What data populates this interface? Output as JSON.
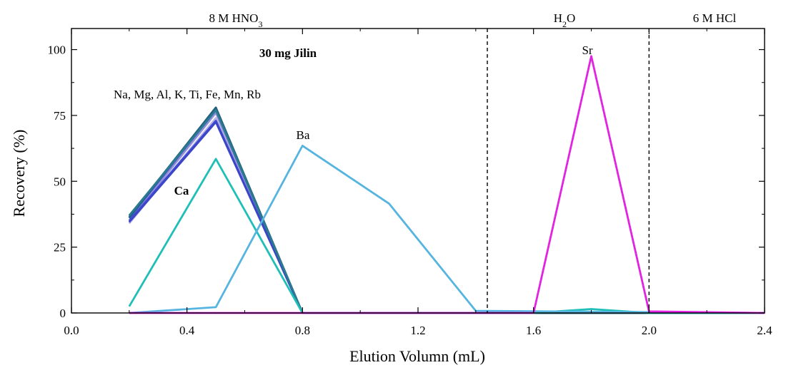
{
  "chart_data": {
    "type": "line",
    "xlabel": "Elution Volumn (mL)",
    "ylabel": "Recovery (%)",
    "xlim": [
      0.0,
      2.4
    ],
    "ylim": [
      0,
      108
    ],
    "xticks": [
      0.0,
      0.4,
      0.8,
      1.2,
      1.6,
      2.0,
      2.4
    ],
    "xtick_labels": [
      "0.0",
      "0.4",
      "0.8",
      "1.2",
      "1.6",
      "2.0",
      "2.4"
    ],
    "yticks": [
      0,
      25,
      50,
      75,
      100
    ],
    "ytick_labels": [
      "0",
      "25",
      "50",
      "75",
      "100"
    ],
    "regions": [
      {
        "label_main": "8 M HNO",
        "label_sub": "3",
        "x_range": [
          0.0,
          1.44
        ]
      },
      {
        "label_main": "H",
        "label_sub": "2",
        "label_tail": "O",
        "x_range": [
          1.44,
          2.0
        ]
      },
      {
        "label_main": "6 M HCl",
        "label_sub": "",
        "x_range": [
          2.0,
          2.4
        ]
      }
    ],
    "dividers": [
      1.44,
      2.0
    ],
    "annotations": {
      "sample": "30 mg Jilin",
      "matrix_group": "Na, Mg, Al, K, Ti, Fe, Mn, Rb",
      "ca": "Ca",
      "ba": "Ba",
      "sr": "Sr"
    },
    "series": [
      {
        "color": "#b8b4e4",
        "x": [
          0.2,
          0.5,
          0.8,
          2.4
        ],
        "y": [
          34,
          74,
          0,
          0
        ]
      },
      {
        "color": "#9590da",
        "x": [
          0.2,
          0.5,
          0.8,
          2.4
        ],
        "y": [
          35,
          76,
          0,
          0
        ]
      },
      {
        "color": "#6a6cd8",
        "x": [
          0.2,
          0.5,
          0.8,
          2.4
        ],
        "y": [
          36,
          77,
          0,
          0
        ]
      },
      {
        "color": "#4a4ed6",
        "x": [
          0.2,
          0.5,
          0.8,
          2.4
        ],
        "y": [
          35,
          73,
          0,
          0
        ]
      },
      {
        "color": "#3a45c8",
        "x": [
          0.2,
          0.5,
          0.8,
          2.4
        ],
        "y": [
          34.5,
          72.5,
          0,
          0
        ]
      },
      {
        "color": "#2f5fa8",
        "x": [
          0.2,
          0.5,
          0.8,
          2.4
        ],
        "y": [
          36,
          77.5,
          0,
          0
        ]
      },
      {
        "color": "#22607e",
        "x": [
          0.2,
          0.5,
          0.8,
          2.4
        ],
        "y": [
          36.5,
          78,
          0,
          0
        ]
      },
      {
        "color": "#2a7a92",
        "x": [
          0.2,
          0.5,
          0.8,
          2.4
        ],
        "y": [
          37,
          77,
          0,
          0
        ]
      },
      {
        "name": "Ca",
        "color": "#1fbfb8",
        "x": [
          0.2,
          0.5,
          0.8,
          1.6,
          1.8,
          2.0,
          2.4
        ],
        "y": [
          2.5,
          58.5,
          0,
          0,
          1.5,
          0,
          0
        ]
      },
      {
        "name": "Ba",
        "color": "#56b4e0",
        "x": [
          0.2,
          0.5,
          0.8,
          1.1,
          1.4,
          2.4
        ],
        "y": [
          0,
          2.2,
          63.5,
          41.5,
          0.8,
          0
        ]
      },
      {
        "name": "Sr",
        "color": "#e223e2",
        "x": [
          0.2,
          1.6,
          1.8,
          2.0,
          2.4
        ],
        "y": [
          0,
          0,
          97.5,
          0.6,
          0
        ]
      }
    ]
  }
}
